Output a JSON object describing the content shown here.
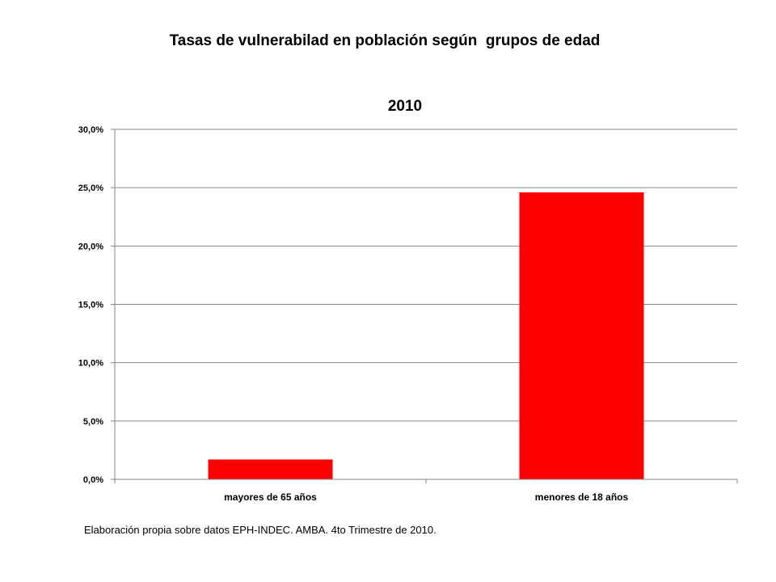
{
  "slide": {
    "title": "Tasas de vulnerabilad en población según  grupos de edad",
    "source_note": "Elaboración propia sobre datos EPH-INDEC. AMBA. 4to Trimestre de 2010."
  },
  "chart_data": {
    "type": "bar",
    "title": "2010",
    "categories": [
      "mayores de 65 años",
      "menores de 18 años"
    ],
    "values": [
      1.7,
      24.6
    ],
    "ylim": [
      0,
      30
    ],
    "y_ticks": [
      0,
      5,
      10,
      15,
      20,
      25,
      30
    ],
    "y_tick_labels": [
      "0,0%",
      "5,0%",
      "10,0%",
      "15,0%",
      "20,0%",
      "25,0%",
      "30,0%"
    ],
    "xlabel": "",
    "ylabel": "",
    "grid": true,
    "legend": "none",
    "bar_color": "#ff0000"
  }
}
